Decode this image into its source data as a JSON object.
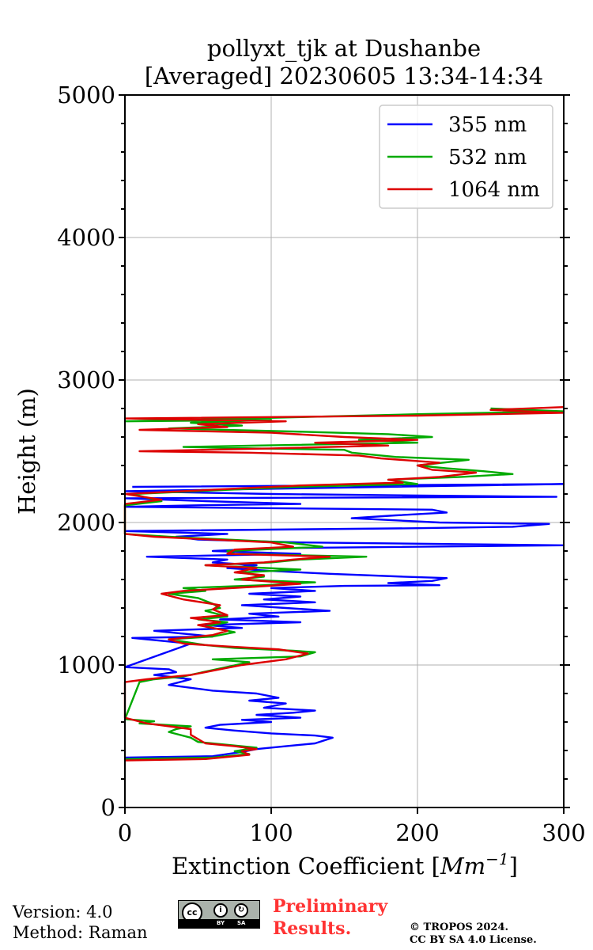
{
  "chart_data": {
    "type": "line",
    "title_line1": "pollyxt_tjk at Dushanbe",
    "title_line2": "[Averaged] 20230605 13:34-14:34",
    "xlabel_text": "Extinction Coefficient [",
    "xlabel_unit": "Mm",
    "xlabel_exp": "−1",
    "xlabel_close": "]",
    "ylabel": "Height (m)",
    "xlim": [
      0,
      300
    ],
    "ylim": [
      0,
      5000
    ],
    "xticks": [
      0,
      100,
      200,
      300
    ],
    "yticks": [
      0,
      1000,
      2000,
      3000,
      4000,
      5000
    ],
    "grid": true,
    "legend_position": "top-right",
    "series": [
      {
        "name": "355 nm",
        "color": "#0000ff",
        "points": [
          [
            0,
            350
          ],
          [
            60,
            360
          ],
          [
            80,
            390
          ],
          [
            90,
            410
          ],
          [
            110,
            430
          ],
          [
            130,
            450
          ],
          [
            142,
            490
          ],
          [
            130,
            505
          ],
          [
            100,
            520
          ],
          [
            75,
            540
          ],
          [
            55,
            560
          ],
          [
            65,
            580
          ],
          [
            100,
            600
          ],
          [
            80,
            615
          ],
          [
            120,
            630
          ],
          [
            90,
            650
          ],
          [
            115,
            665
          ],
          [
            130,
            680
          ],
          [
            95,
            700
          ],
          [
            110,
            730
          ],
          [
            85,
            750
          ],
          [
            105,
            770
          ],
          [
            90,
            800
          ],
          [
            60,
            820
          ],
          [
            45,
            840
          ],
          [
            30,
            860
          ],
          [
            45,
            900
          ],
          [
            20,
            930
          ],
          [
            35,
            950
          ],
          [
            30,
            970
          ],
          [
            0,
            985
          ],
          [
            45,
            1150
          ],
          [
            5,
            1190
          ],
          [
            60,
            1200
          ],
          [
            40,
            1220
          ],
          [
            20,
            1240
          ],
          [
            80,
            1260
          ],
          [
            55,
            1280
          ],
          [
            120,
            1300
          ],
          [
            65,
            1320
          ],
          [
            105,
            1340
          ],
          [
            85,
            1360
          ],
          [
            140,
            1380
          ],
          [
            110,
            1400
          ],
          [
            80,
            1420
          ],
          [
            130,
            1440
          ],
          [
            95,
            1460
          ],
          [
            120,
            1480
          ],
          [
            85,
            1500
          ],
          [
            130,
            1520
          ],
          [
            100,
            1540
          ],
          [
            150,
            1555
          ],
          [
            215,
            1560
          ],
          [
            180,
            1575
          ],
          [
            210,
            1590
          ],
          [
            220,
            1610
          ],
          [
            190,
            1620
          ],
          [
            140,
            1640
          ],
          [
            100,
            1660
          ],
          [
            70,
            1680
          ],
          [
            90,
            1700
          ],
          [
            60,
            1720
          ],
          [
            70,
            1740
          ],
          [
            15,
            1760
          ],
          [
            120,
            1780
          ],
          [
            60,
            1800
          ],
          [
            100,
            1820
          ],
          [
            300,
            1840
          ],
          [
            120,
            1860
          ],
          [
            50,
            1880
          ],
          [
            35,
            1900
          ],
          [
            70,
            1920
          ],
          [
            0,
            1940
          ],
          [
            200,
            1960
          ],
          [
            265,
            1970
          ],
          [
            290,
            1990
          ],
          [
            215,
            2000
          ],
          [
            195,
            2010
          ],
          [
            155,
            2030
          ],
          [
            185,
            2050
          ],
          [
            220,
            2070
          ],
          [
            210,
            2090
          ],
          [
            0,
            2110
          ],
          [
            45,
            2120
          ],
          [
            120,
            2130
          ],
          [
            55,
            2150
          ],
          [
            0,
            2170
          ],
          [
            295,
            2180
          ],
          [
            100,
            2200
          ],
          [
            0,
            2220
          ],
          [
            300,
            2270
          ],
          [
            5,
            2250
          ]
        ]
      },
      {
        "name": "532 nm",
        "color": "#00aa00",
        "points": [
          [
            0,
            340
          ],
          [
            60,
            350
          ],
          [
            85,
            375
          ],
          [
            75,
            395
          ],
          [
            90,
            420
          ],
          [
            70,
            440
          ],
          [
            50,
            460
          ],
          [
            45,
            490
          ],
          [
            30,
            530
          ],
          [
            35,
            550
          ],
          [
            45,
            570
          ],
          [
            10,
            590
          ],
          [
            20,
            605
          ],
          [
            0,
            620
          ],
          [
            10,
            880
          ],
          [
            20,
            900
          ],
          [
            40,
            920
          ],
          [
            85,
            1020
          ],
          [
            60,
            1040
          ],
          [
            120,
            1060
          ],
          [
            130,
            1090
          ],
          [
            115,
            1100
          ],
          [
            75,
            1120
          ],
          [
            55,
            1140
          ],
          [
            30,
            1180
          ],
          [
            60,
            1200
          ],
          [
            75,
            1230
          ],
          [
            55,
            1270
          ],
          [
            70,
            1300
          ],
          [
            50,
            1320
          ],
          [
            70,
            1340
          ],
          [
            55,
            1380
          ],
          [
            65,
            1400
          ],
          [
            60,
            1430
          ],
          [
            50,
            1470
          ],
          [
            30,
            1500
          ],
          [
            55,
            1520
          ],
          [
            40,
            1540
          ],
          [
            95,
            1560
          ],
          [
            130,
            1580
          ],
          [
            75,
            1600
          ],
          [
            95,
            1620
          ],
          [
            80,
            1650
          ],
          [
            120,
            1670
          ],
          [
            55,
            1700
          ],
          [
            100,
            1720
          ],
          [
            120,
            1740
          ],
          [
            165,
            1760
          ],
          [
            75,
            1780
          ],
          [
            70,
            1800
          ],
          [
            135,
            1830
          ],
          [
            110,
            1860
          ],
          [
            70,
            1880
          ],
          [
            30,
            1900
          ],
          [
            0,
            1920
          ],
          [
            0,
            2120
          ],
          [
            25,
            2150
          ],
          [
            5,
            2200
          ],
          [
            115,
            2250
          ],
          [
            200,
            2270
          ],
          [
            180,
            2300
          ],
          [
            230,
            2320
          ],
          [
            265,
            2340
          ],
          [
            245,
            2360
          ],
          [
            220,
            2380
          ],
          [
            200,
            2400
          ],
          [
            235,
            2440
          ],
          [
            185,
            2460
          ],
          [
            155,
            2490
          ],
          [
            150,
            2510
          ],
          [
            90,
            2520
          ],
          [
            40,
            2530
          ],
          [
            90,
            2540
          ],
          [
            200,
            2560
          ],
          [
            160,
            2580
          ],
          [
            210,
            2600
          ],
          [
            180,
            2620
          ],
          [
            110,
            2640
          ],
          [
            30,
            2660
          ],
          [
            80,
            2680
          ],
          [
            45,
            2700
          ],
          [
            100,
            2720
          ],
          [
            0,
            2710
          ],
          [
            200,
            2760
          ],
          [
            300,
            2780
          ],
          [
            250,
            2800
          ]
        ]
      },
      {
        "name": "1064 nm",
        "color": "#dd0000",
        "points": [
          [
            0,
            330
          ],
          [
            55,
            340
          ],
          [
            85,
            370
          ],
          [
            80,
            395
          ],
          [
            90,
            410
          ],
          [
            75,
            430
          ],
          [
            55,
            450
          ],
          [
            50,
            480
          ],
          [
            45,
            510
          ],
          [
            45,
            550
          ],
          [
            15,
            590
          ],
          [
            0,
            630
          ],
          [
            0,
            880
          ],
          [
            15,
            900
          ],
          [
            45,
            930
          ],
          [
            80,
            1000
          ],
          [
            110,
            1040
          ],
          [
            125,
            1080
          ],
          [
            105,
            1110
          ],
          [
            70,
            1130
          ],
          [
            40,
            1150
          ],
          [
            30,
            1180
          ],
          [
            60,
            1210
          ],
          [
            70,
            1240
          ],
          [
            50,
            1280
          ],
          [
            65,
            1300
          ],
          [
            45,
            1330
          ],
          [
            70,
            1350
          ],
          [
            60,
            1390
          ],
          [
            65,
            1420
          ],
          [
            40,
            1460
          ],
          [
            25,
            1500
          ],
          [
            40,
            1520
          ],
          [
            90,
            1550
          ],
          [
            120,
            1570
          ],
          [
            80,
            1600
          ],
          [
            95,
            1630
          ],
          [
            75,
            1650
          ],
          [
            90,
            1680
          ],
          [
            55,
            1700
          ],
          [
            95,
            1720
          ],
          [
            115,
            1740
          ],
          [
            140,
            1760
          ],
          [
            70,
            1780
          ],
          [
            75,
            1810
          ],
          [
            115,
            1830
          ],
          [
            100,
            1860
          ],
          [
            60,
            1880
          ],
          [
            20,
            1900
          ],
          [
            0,
            1920
          ],
          [
            0,
            2130
          ],
          [
            25,
            2160
          ],
          [
            0,
            2200
          ],
          [
            120,
            2260
          ],
          [
            190,
            2280
          ],
          [
            180,
            2300
          ],
          [
            215,
            2320
          ],
          [
            240,
            2350
          ],
          [
            210,
            2370
          ],
          [
            200,
            2400
          ],
          [
            215,
            2420
          ],
          [
            175,
            2450
          ],
          [
            160,
            2470
          ],
          [
            85,
            2490
          ],
          [
            10,
            2500
          ],
          [
            100,
            2520
          ],
          [
            180,
            2540
          ],
          [
            130,
            2560
          ],
          [
            200,
            2580
          ],
          [
            150,
            2600
          ],
          [
            100,
            2630
          ],
          [
            10,
            2650
          ],
          [
            70,
            2670
          ],
          [
            50,
            2690
          ],
          [
            110,
            2710
          ],
          [
            0,
            2730
          ],
          [
            200,
            2750
          ],
          [
            300,
            2770
          ],
          [
            250,
            2790
          ],
          [
            300,
            2810
          ]
        ]
      }
    ]
  },
  "footer": {
    "version": "Version: 4.0",
    "method": "Method: Raman",
    "cc_label": "cc",
    "cc_by": "BY",
    "cc_sa": "SA",
    "preliminary_line1": "Preliminary",
    "preliminary_line2": "Results.",
    "copyright_line1": "© TROPOS 2024.",
    "copyright_line2": "CC BY SA 4.0 License."
  }
}
